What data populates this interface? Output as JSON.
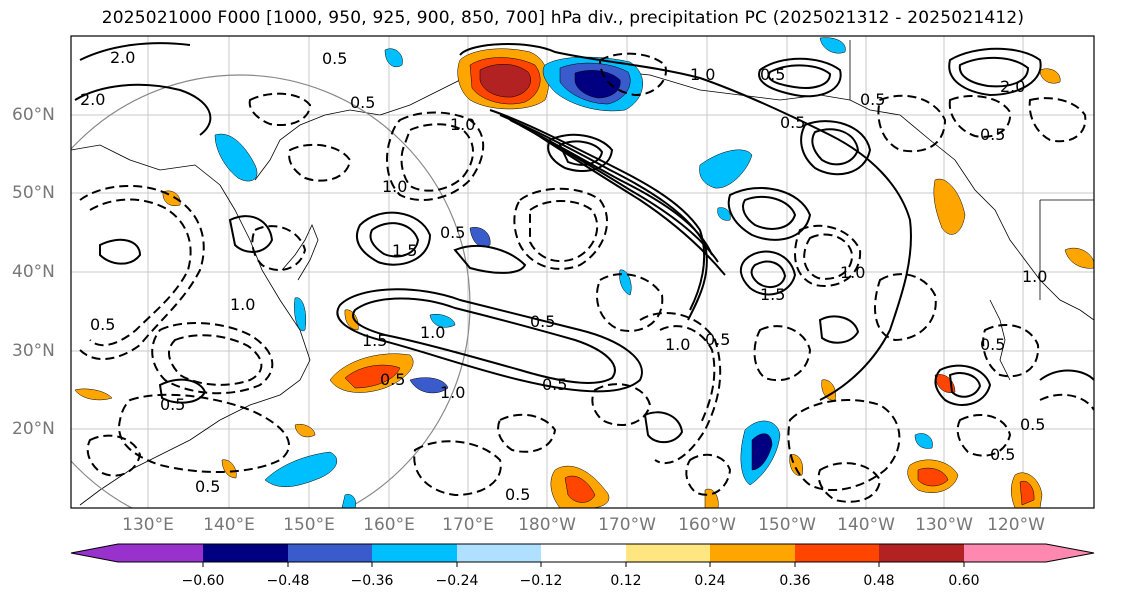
{
  "title": "2025021000 F000 [1000, 950, 925, 900, 850, 700] hPa div., precipitation PC (2025021312 - 2025021412)",
  "lat_labels": [
    "60°N",
    "50°N",
    "40°N",
    "30°N",
    "20°N"
  ],
  "lon_labels": [
    "130°E",
    "140°E",
    "150°E",
    "160°E",
    "170°E",
    "180°W",
    "170°W",
    "160°W",
    "150°W",
    "140°W",
    "130°W",
    "120°W"
  ],
  "colorbar": {
    "labels": [
      "−0.60",
      "−0.48",
      "−0.36",
      "−0.24",
      "−0.12",
      "0.12",
      "0.24",
      "0.36",
      "0.48",
      "0.60"
    ],
    "colors": [
      "#9932cc",
      "#000080",
      "#3a5bcb",
      "#00bfff",
      "#b0e0ff",
      "#ffffff",
      "#ffe680",
      "#ffa500",
      "#ff4500",
      "#b22222",
      "#ff88b0"
    ]
  },
  "contour_labels": [
    "2.0",
    "2.0",
    "2.0",
    "1.0",
    "0.5",
    "0.5",
    "1.5",
    "0.5",
    "1.0",
    "0.5",
    "1.5",
    "1.0",
    "0.5",
    "0.5",
    "1.0",
    "0.5",
    "0.5",
    "1.0",
    "0.5",
    "0.5",
    "1.0",
    "1.0",
    "0.5",
    "0.5",
    "0.5",
    "1.5",
    "1.0",
    "0.5",
    "0.5",
    "1.0",
    "0.5",
    "0.5",
    "0.5"
  ]
}
